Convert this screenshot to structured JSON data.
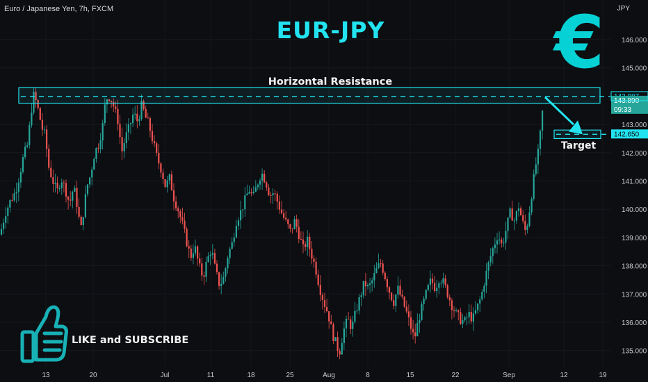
{
  "symbol": "Euro / Japanese Yen, 7h, FXCM",
  "currency": "JPY",
  "annotations": {
    "title": "EUR-JPY",
    "euro_symbol": "€",
    "resistance_label": "Horizontal Resistance",
    "target_label": "Target",
    "cta": "LIKE and SUBSCRIBE"
  },
  "colors": {
    "background": "#0d0e12",
    "up": "#26a69a",
    "down": "#ef5350",
    "accent": "#22e4f0",
    "text": "#d8d9dd"
  },
  "icons": [
    "euro-icon",
    "thumbs-up-icon",
    "arrow-icon"
  ],
  "chart_data": {
    "type": "candlestick",
    "y_axis": {
      "ticks": [
        "146.000",
        "145.000",
        "143.000",
        "142.000",
        "141.000",
        "140.000",
        "139.000",
        "138.000",
        "137.000",
        "136.000",
        "135.000"
      ],
      "range": [
        134.6,
        146.6
      ]
    },
    "x_axis": {
      "ticks": [
        "13",
        "20",
        "Jul",
        "11",
        "18",
        "25",
        "Aug",
        "8",
        "15",
        "22",
        "Sep",
        "12",
        "19"
      ]
    },
    "price_labels": {
      "resistance": "143.987",
      "last_price": "143.890",
      "countdown": "09:33",
      "target": "142.650"
    },
    "levels": {
      "resistance": 143.987,
      "resistance_zone": [
        143.75,
        144.3
      ],
      "target": 142.65,
      "target_zone": [
        142.5,
        142.8
      ]
    },
    "series": [
      {
        "values": [
          [
            0,
            139.1
          ],
          [
            8,
            139.9
          ],
          [
            15,
            140.3
          ],
          [
            22,
            140.6
          ],
          [
            28,
            141.2
          ],
          [
            34,
            141.9
          ],
          [
            40,
            142.3
          ],
          [
            44,
            143.3
          ],
          [
            48,
            144.05
          ],
          [
            52,
            143.8
          ],
          [
            56,
            143.4
          ],
          [
            60,
            142.9
          ],
          [
            65,
            142.6
          ],
          [
            70,
            141.5
          ],
          [
            76,
            141.0
          ],
          [
            82,
            140.6
          ],
          [
            88,
            141.1
          ],
          [
            94,
            140.7
          ],
          [
            100,
            140.2
          ],
          [
            106,
            140.8
          ],
          [
            112,
            140.0
          ],
          [
            116,
            139.2
          ],
          [
            120,
            139.9
          ],
          [
            125,
            140.8
          ],
          [
            130,
            141.2
          ],
          [
            136,
            142.0
          ],
          [
            142,
            142.3
          ],
          [
            148,
            143.0
          ],
          [
            152,
            143.9
          ],
          [
            158,
            144.0
          ],
          [
            164,
            143.6
          ],
          [
            170,
            143.1
          ],
          [
            175,
            142.0
          ],
          [
            180,
            142.5
          ],
          [
            186,
            142.9
          ],
          [
            192,
            143.4
          ],
          [
            198,
            143.1
          ],
          [
            204,
            143.7
          ],
          [
            210,
            143.2
          ],
          [
            214,
            143.0
          ],
          [
            220,
            142.4
          ],
          [
            226,
            141.8
          ],
          [
            232,
            141.4
          ],
          [
            238,
            140.8
          ],
          [
            244,
            141.1
          ],
          [
            250,
            140.4
          ],
          [
            256,
            140.0
          ],
          [
            262,
            139.5
          ],
          [
            268,
            138.9
          ],
          [
            274,
            138.3
          ],
          [
            280,
            138.7
          ],
          [
            286,
            138.0
          ],
          [
            292,
            137.6
          ],
          [
            298,
            138.2
          ],
          [
            304,
            138.6
          ],
          [
            310,
            137.8
          ],
          [
            316,
            137.3
          ],
          [
            322,
            137.6
          ],
          [
            328,
            138.4
          ],
          [
            334,
            138.8
          ],
          [
            340,
            139.6
          ],
          [
            346,
            139.9
          ],
          [
            352,
            140.3
          ],
          [
            358,
            140.7
          ],
          [
            364,
            140.4
          ],
          [
            370,
            140.9
          ],
          [
            376,
            141.3
          ],
          [
            382,
            141.0
          ],
          [
            388,
            140.5
          ],
          [
            394,
            140.6
          ],
          [
            400,
            140.2
          ],
          [
            406,
            139.8
          ],
          [
            412,
            139.5
          ],
          [
            418,
            139.2
          ],
          [
            424,
            139.6
          ],
          [
            430,
            139.1
          ],
          [
            436,
            138.6
          ],
          [
            442,
            138.9
          ],
          [
            448,
            138.4
          ],
          [
            454,
            137.9
          ],
          [
            460,
            137.2
          ],
          [
            466,
            136.7
          ],
          [
            472,
            136.3
          ],
          [
            478,
            135.6
          ],
          [
            484,
            135.2
          ],
          [
            488,
            134.9
          ],
          [
            494,
            135.7
          ],
          [
            500,
            136.1
          ],
          [
            506,
            135.8
          ],
          [
            512,
            136.4
          ],
          [
            518,
            136.9
          ],
          [
            524,
            137.4
          ],
          [
            530,
            137.2
          ],
          [
            536,
            137.5
          ],
          [
            542,
            137.9
          ],
          [
            548,
            138.1
          ],
          [
            554,
            137.6
          ],
          [
            560,
            137.1
          ],
          [
            566,
            136.7
          ],
          [
            572,
            137.2
          ],
          [
            578,
            136.8
          ],
          [
            584,
            136.4
          ],
          [
            590,
            135.9
          ],
          [
            596,
            135.4
          ],
          [
            602,
            136.1
          ],
          [
            608,
            136.6
          ],
          [
            614,
            137.1
          ],
          [
            620,
            137.5
          ],
          [
            626,
            137.2
          ],
          [
            632,
            137.6
          ],
          [
            638,
            137.4
          ],
          [
            644,
            137.0
          ],
          [
            650,
            136.6
          ],
          [
            656,
            136.3
          ],
          [
            662,
            136.1
          ],
          [
            668,
            136.0
          ],
          [
            674,
            136.3
          ],
          [
            680,
            136.1
          ],
          [
            686,
            136.5
          ],
          [
            692,
            136.9
          ],
          [
            698,
            137.6
          ],
          [
            704,
            138.2
          ],
          [
            710,
            138.7
          ],
          [
            716,
            139.1
          ],
          [
            722,
            138.7
          ],
          [
            728,
            139.3
          ],
          [
            734,
            139.9
          ],
          [
            740,
            139.6
          ],
          [
            746,
            140.1
          ],
          [
            752,
            139.5
          ],
          [
            756,
            139.2
          ],
          [
            760,
            139.7
          ],
          [
            765,
            140.6
          ],
          [
            770,
            141.5
          ],
          [
            775,
            142.1
          ],
          [
            778,
            142.9
          ],
          [
            782,
            143.89
          ]
        ]
      }
    ]
  }
}
